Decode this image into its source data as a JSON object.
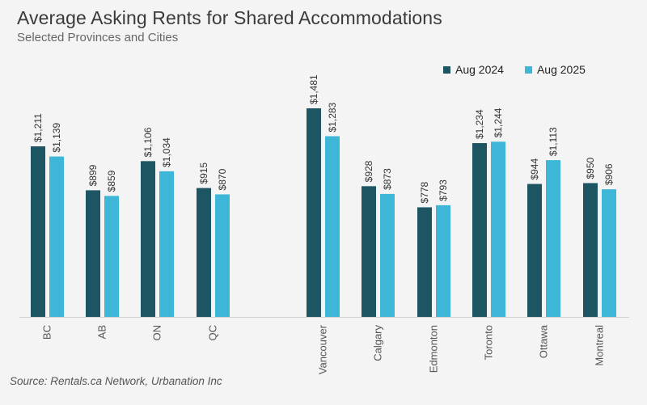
{
  "title": "Average Asking Rents for Shared Accommodations",
  "subtitle": "Selected Provinces and Cities",
  "source": "Source: Rentals.ca Network, Urbanation Inc",
  "colors": {
    "aug2024": "#1d5563",
    "aug2025": "#3db6d8"
  },
  "chart_data": {
    "type": "bar",
    "categories": [
      "BC",
      "AB",
      "ON",
      "QC",
      "Vancouver",
      "Calgary",
      "Edmonton",
      "Toronto",
      "Ottawa",
      "Montreal"
    ],
    "series": [
      {
        "name": "Aug 2024",
        "values": [
          1211,
          899,
          1106,
          915,
          1481,
          928,
          778,
          1234,
          944,
          950
        ]
      },
      {
        "name": "Aug 2025",
        "values": [
          1139,
          859,
          1034,
          870,
          1283,
          873,
          793,
          1244,
          1113,
          906
        ]
      }
    ],
    "data_labels": [
      [
        "$1,211",
        "$899",
        "$1,106",
        "$915",
        "$1,481",
        "$928",
        "$778",
        "$1,234",
        "$944",
        "$950"
      ],
      [
        "$1,139",
        "$859",
        "$1,034",
        "$870",
        "$1,283",
        "$873",
        "$793",
        "$1,244",
        "$1,113",
        "$906"
      ]
    ],
    "ylim": [
      0,
      1600
    ],
    "grid": false,
    "legend": "top-right"
  }
}
